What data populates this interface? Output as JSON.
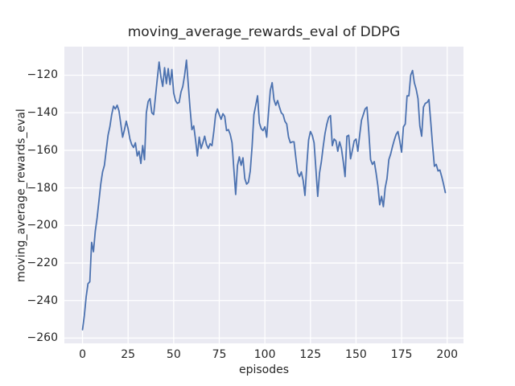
{
  "figure": {
    "title": "moving_average_rewards_eval of DDPG"
  },
  "chart_data": {
    "type": "line",
    "title": "moving_average_rewards_eval of DDPG",
    "xlabel": "episodes",
    "ylabel": "moving_average_rewards_eval",
    "style": "seaborn-darkgrid",
    "grid": true,
    "legend": "none",
    "axes_bg_color": "#eaeaf2",
    "grid_color": "#ffffff",
    "line_color": "#4c72b0",
    "text_color": "#262626",
    "x_ticks": [
      0,
      25,
      50,
      75,
      100,
      125,
      150,
      175,
      200
    ],
    "y_ticks": [
      -120,
      -140,
      -160,
      -180,
      -200,
      -220,
      -240,
      -260
    ],
    "xlim": [
      -9.95,
      208.95
    ],
    "ylim": [
      -262.8,
      -104.8
    ],
    "series": [
      {
        "name": "moving_average_rewards_eval",
        "x_start": 0,
        "x_step": 1,
        "values": [
          -255.5,
          -248,
          -238,
          -231,
          -230,
          -209,
          -214,
          -203,
          -196,
          -187,
          -178,
          -171.5,
          -168,
          -160,
          -152,
          -147.5,
          -141,
          -136.5,
          -138,
          -136,
          -139,
          -146,
          -153,
          -149,
          -144.5,
          -148.5,
          -154,
          -157,
          -158.5,
          -156,
          -163,
          -160.5,
          -167,
          -157.5,
          -165,
          -140,
          -134,
          -132.5,
          -140,
          -141,
          -131.5,
          -122,
          -113,
          -121,
          -126,
          -116,
          -124.5,
          -116.5,
          -125,
          -117,
          -129.5,
          -133.5,
          -135,
          -134.5,
          -129,
          -126,
          -120,
          -112,
          -125,
          -138,
          -149,
          -147,
          -154.5,
          -163,
          -153,
          -159,
          -156,
          -152.5,
          -157,
          -159,
          -156.5,
          -157.5,
          -150,
          -141,
          -138,
          -141,
          -143.5,
          -140.5,
          -142,
          -149.5,
          -149,
          -151.5,
          -156,
          -170,
          -183.5,
          -168,
          -163.5,
          -168,
          -164,
          -175,
          -178,
          -177,
          -171,
          -158,
          -141,
          -136,
          -131,
          -145.5,
          -148.5,
          -149.5,
          -147.5,
          -153,
          -140,
          -128,
          -124,
          -133,
          -136,
          -133.5,
          -137,
          -140,
          -141,
          -144.5,
          -146,
          -153,
          -156,
          -155.5,
          -155.5,
          -164,
          -172,
          -174,
          -171.5,
          -176,
          -184,
          -168,
          -154.5,
          -150,
          -152,
          -156,
          -170,
          -184.5,
          -172,
          -166,
          -158,
          -151,
          -146,
          -142.5,
          -141.5,
          -157.5,
          -154,
          -155,
          -160.5,
          -155.5,
          -159,
          -166,
          -174,
          -152.5,
          -152,
          -164.5,
          -160,
          -155,
          -154,
          -160.5,
          -152,
          -144,
          -141,
          -138,
          -137,
          -150,
          -165,
          -167.5,
          -166,
          -172,
          -179,
          -189,
          -184.5,
          -190,
          -180,
          -175,
          -165,
          -162,
          -158,
          -154.5,
          -151.5,
          -150,
          -155,
          -161,
          -147.5,
          -146,
          -131,
          -131,
          -120,
          -117.5,
          -124,
          -127.5,
          -132.5,
          -147,
          -152.5,
          -137,
          -135,
          -134.5,
          -133,
          -145,
          -157.5,
          -168.5,
          -167.5,
          -171,
          -170.5,
          -174,
          -178,
          -182.5
        ]
      }
    ]
  }
}
